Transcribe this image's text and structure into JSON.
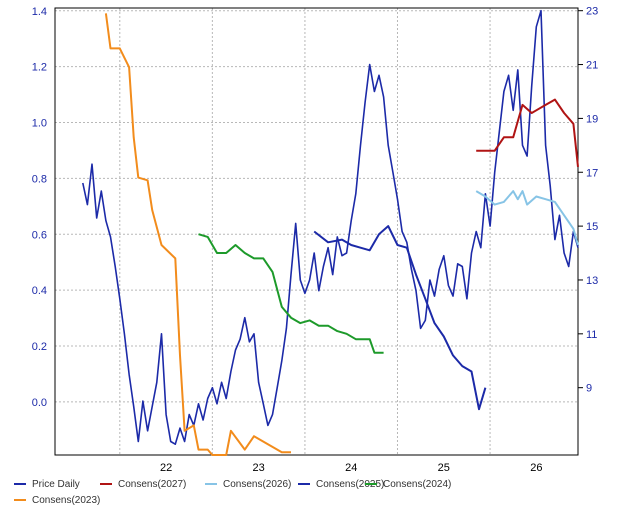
{
  "chart_data": {
    "type": "line",
    "grid": true,
    "x_ticks": [
      "22",
      "23",
      "24",
      "25",
      "26"
    ],
    "left_axis": {
      "ticks": [
        "1.4",
        "1.2",
        "1.0",
        "0.8",
        "0.6",
        "0.4",
        "0.2",
        "0.0"
      ],
      "ylim": [
        -0.19,
        1.41
      ]
    },
    "right_axis": {
      "ticks": [
        "23",
        "21",
        "19",
        "17",
        "15",
        "13",
        "11",
        "9"
      ],
      "ylim": [
        6.5,
        23.1
      ]
    },
    "x_range": [
      2021.3,
      2026.95
    ],
    "series": [
      {
        "name": "Price Daily",
        "axis": "right",
        "color": "#1c2aa8",
        "points": [
          [
            2021.6,
            16.6
          ],
          [
            2021.65,
            15.8
          ],
          [
            2021.7,
            17.3
          ],
          [
            2021.75,
            15.3
          ],
          [
            2021.8,
            16.3
          ],
          [
            2021.85,
            15.2
          ],
          [
            2021.9,
            14.6
          ],
          [
            2021.95,
            13.5
          ],
          [
            2022.0,
            12.3
          ],
          [
            2022.05,
            11.0
          ],
          [
            2022.1,
            9.5
          ],
          [
            2022.15,
            8.3
          ],
          [
            2022.2,
            7.0
          ],
          [
            2022.25,
            8.5
          ],
          [
            2022.3,
            7.4
          ],
          [
            2022.35,
            8.3
          ],
          [
            2022.4,
            9.2
          ],
          [
            2022.45,
            11.0
          ],
          [
            2022.5,
            8.0
          ],
          [
            2022.55,
            7.0
          ],
          [
            2022.6,
            6.9
          ],
          [
            2022.65,
            7.5
          ],
          [
            2022.7,
            7.0
          ],
          [
            2022.75,
            8.0
          ],
          [
            2022.8,
            7.6
          ],
          [
            2022.85,
            8.4
          ],
          [
            2022.9,
            7.8
          ],
          [
            2022.95,
            8.6
          ],
          [
            2023.0,
            9.0
          ],
          [
            2023.05,
            8.4
          ],
          [
            2023.1,
            9.2
          ],
          [
            2023.15,
            8.6
          ],
          [
            2023.2,
            9.6
          ],
          [
            2023.25,
            10.4
          ],
          [
            2023.3,
            10.8
          ],
          [
            2023.35,
            11.6
          ],
          [
            2023.4,
            10.7
          ],
          [
            2023.45,
            11.0
          ],
          [
            2023.5,
            9.2
          ],
          [
            2023.55,
            8.4
          ],
          [
            2023.6,
            7.6
          ],
          [
            2023.65,
            8.0
          ],
          [
            2023.7,
            9.0
          ],
          [
            2023.75,
            10.0
          ],
          [
            2023.8,
            11.2
          ],
          [
            2023.85,
            13.2
          ],
          [
            2023.9,
            15.1
          ],
          [
            2023.95,
            13.0
          ],
          [
            2024.0,
            12.5
          ],
          [
            2024.05,
            13.0
          ],
          [
            2024.1,
            14.0
          ],
          [
            2024.15,
            12.6
          ],
          [
            2024.2,
            13.5
          ],
          [
            2024.25,
            14.2
          ],
          [
            2024.3,
            13.2
          ],
          [
            2024.35,
            14.6
          ],
          [
            2024.4,
            13.9
          ],
          [
            2024.45,
            14.0
          ],
          [
            2024.5,
            15.2
          ],
          [
            2024.55,
            16.2
          ],
          [
            2024.6,
            18.0
          ],
          [
            2024.65,
            19.6
          ],
          [
            2024.7,
            21.0
          ],
          [
            2024.75,
            20.0
          ],
          [
            2024.8,
            20.6
          ],
          [
            2024.85,
            19.8
          ],
          [
            2024.9,
            18.0
          ],
          [
            2024.95,
            17.0
          ],
          [
            2025.0,
            16.0
          ],
          [
            2025.05,
            14.8
          ],
          [
            2025.1,
            14.4
          ],
          [
            2025.15,
            13.4
          ],
          [
            2025.2,
            12.6
          ],
          [
            2025.25,
            11.2
          ],
          [
            2025.3,
            11.5
          ],
          [
            2025.35,
            13.0
          ],
          [
            2025.4,
            12.4
          ],
          [
            2025.45,
            13.4
          ],
          [
            2025.5,
            13.9
          ],
          [
            2025.55,
            12.8
          ],
          [
            2025.6,
            12.4
          ],
          [
            2025.65,
            13.6
          ],
          [
            2025.7,
            13.5
          ],
          [
            2025.75,
            12.3
          ],
          [
            2025.8,
            14.0
          ],
          [
            2025.85,
            14.8
          ],
          [
            2025.9,
            14.2
          ],
          [
            2025.95,
            16.2
          ],
          [
            2026.0,
            15.0
          ],
          [
            2026.05,
            17.0
          ],
          [
            2026.1,
            18.5
          ],
          [
            2026.15,
            20.0
          ],
          [
            2026.2,
            20.6
          ],
          [
            2026.25,
            19.3
          ],
          [
            2026.3,
            20.8
          ],
          [
            2026.35,
            18.0
          ],
          [
            2026.4,
            17.6
          ],
          [
            2026.45,
            20.2
          ],
          [
            2026.5,
            22.4
          ],
          [
            2026.55,
            23.0
          ],
          [
            2026.6,
            18.0
          ],
          [
            2026.65,
            16.5
          ],
          [
            2026.7,
            14.5
          ],
          [
            2026.75,
            15.4
          ],
          [
            2026.8,
            14.0
          ],
          [
            2026.85,
            13.5
          ],
          [
            2026.9,
            14.8
          ],
          [
            2026.95,
            14.2
          ]
        ]
      },
      {
        "name": "Consens(2027)",
        "axis": "right",
        "color": "#b01414",
        "points": [
          [
            2025.85,
            17.8
          ],
          [
            2025.95,
            17.8
          ],
          [
            2026.05,
            17.8
          ],
          [
            2026.15,
            18.3
          ],
          [
            2026.25,
            18.3
          ],
          [
            2026.35,
            19.5
          ],
          [
            2026.45,
            19.2
          ],
          [
            2026.5,
            19.3
          ],
          [
            2026.6,
            19.5
          ],
          [
            2026.7,
            19.7
          ],
          [
            2026.8,
            19.2
          ],
          [
            2026.9,
            18.8
          ],
          [
            2026.95,
            17.2
          ]
        ]
      },
      {
        "name": "Consens(2026)",
        "axis": "right",
        "color": "#87c4e6",
        "points": [
          [
            2025.85,
            16.3
          ],
          [
            2025.95,
            16.1
          ],
          [
            2026.05,
            15.8
          ],
          [
            2026.15,
            15.9
          ],
          [
            2026.25,
            16.3
          ],
          [
            2026.3,
            16.0
          ],
          [
            2026.35,
            16.3
          ],
          [
            2026.4,
            15.8
          ],
          [
            2026.5,
            16.1
          ],
          [
            2026.6,
            16.0
          ],
          [
            2026.7,
            15.9
          ],
          [
            2026.8,
            15.4
          ],
          [
            2026.9,
            14.9
          ],
          [
            2026.95,
            14.3
          ]
        ]
      },
      {
        "name": "Consens(2025)",
        "axis": "right",
        "color": "#1c2aa8",
        "points": [
          [
            2024.1,
            14.8
          ],
          [
            2024.25,
            14.4
          ],
          [
            2024.4,
            14.5
          ],
          [
            2024.5,
            14.3
          ],
          [
            2024.6,
            14.2
          ],
          [
            2024.7,
            14.1
          ],
          [
            2024.8,
            14.7
          ],
          [
            2024.9,
            15.0
          ],
          [
            2025.0,
            14.3
          ],
          [
            2025.1,
            14.2
          ],
          [
            2025.2,
            13.2
          ],
          [
            2025.3,
            12.3
          ],
          [
            2025.4,
            11.4
          ],
          [
            2025.5,
            10.9
          ],
          [
            2025.6,
            10.2
          ],
          [
            2025.7,
            9.8
          ],
          [
            2025.8,
            9.6
          ],
          [
            2025.88,
            8.2
          ],
          [
            2025.95,
            9.0
          ]
        ]
      },
      {
        "name": "Consens(2024)",
        "axis": "right",
        "color": "#1d9a2a",
        "points": [
          [
            2022.85,
            14.7
          ],
          [
            2022.95,
            14.6
          ],
          [
            2023.05,
            14.0
          ],
          [
            2023.15,
            14.0
          ],
          [
            2023.25,
            14.3
          ],
          [
            2023.35,
            14.0
          ],
          [
            2023.45,
            13.8
          ],
          [
            2023.55,
            13.8
          ],
          [
            2023.65,
            13.3
          ],
          [
            2023.75,
            12.0
          ],
          [
            2023.85,
            11.6
          ],
          [
            2023.95,
            11.4
          ],
          [
            2024.05,
            11.5
          ],
          [
            2024.15,
            11.3
          ],
          [
            2024.25,
            11.3
          ],
          [
            2024.35,
            11.1
          ],
          [
            2024.45,
            11.0
          ],
          [
            2024.55,
            10.8
          ],
          [
            2024.65,
            10.8
          ],
          [
            2024.7,
            10.8
          ],
          [
            2024.75,
            10.3
          ],
          [
            2024.85,
            10.3
          ]
        ]
      },
      {
        "name": "Consens(2023)",
        "axis": "right",
        "color": "#f28c1c",
        "points": [
          [
            2021.85,
            22.9
          ],
          [
            2021.9,
            21.6
          ],
          [
            2022.0,
            21.6
          ],
          [
            2022.1,
            20.9
          ],
          [
            2022.15,
            18.3
          ],
          [
            2022.2,
            16.8
          ],
          [
            2022.3,
            16.7
          ],
          [
            2022.35,
            15.6
          ],
          [
            2022.45,
            14.3
          ],
          [
            2022.6,
            13.8
          ],
          [
            2022.65,
            10.2
          ],
          [
            2022.7,
            7.4
          ],
          [
            2022.8,
            7.6
          ],
          [
            2022.85,
            6.7
          ],
          [
            2022.95,
            6.7
          ],
          [
            2023.0,
            6.5
          ],
          [
            2023.15,
            6.5
          ],
          [
            2023.2,
            7.4
          ],
          [
            2023.35,
            6.7
          ],
          [
            2023.45,
            7.2
          ],
          [
            2023.6,
            6.9
          ],
          [
            2023.75,
            6.6
          ],
          [
            2023.85,
            6.6
          ]
        ]
      }
    ]
  },
  "legend": [
    {
      "label": "Price Daily",
      "color": "#1c2aa8"
    },
    {
      "label": "Consens(2027)",
      "color": "#b01414"
    },
    {
      "label": "Consens(2026)",
      "color": "#87c4e6"
    },
    {
      "label": "Consens(2025)",
      "color": "#1c2aa8"
    },
    {
      "label": "Consens(2024)",
      "color": "#1d9a2a"
    },
    {
      "label": "Consens(2023)",
      "color": "#f28c1c"
    }
  ]
}
